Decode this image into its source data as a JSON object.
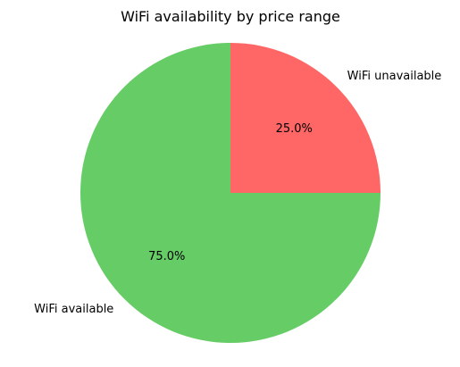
{
  "chart_data": {
    "type": "pie",
    "title": "WiFi availability by price range",
    "slices": [
      {
        "label": "WiFi unavailable",
        "value": 25.0,
        "pct_label": "25.0%",
        "color": "#ff6666"
      },
      {
        "label": "WiFi available",
        "value": 75.0,
        "pct_label": "75.0%",
        "color": "#66cc66"
      }
    ],
    "start_angle_deg": 90,
    "direction": "clockwise",
    "legend": "none"
  }
}
